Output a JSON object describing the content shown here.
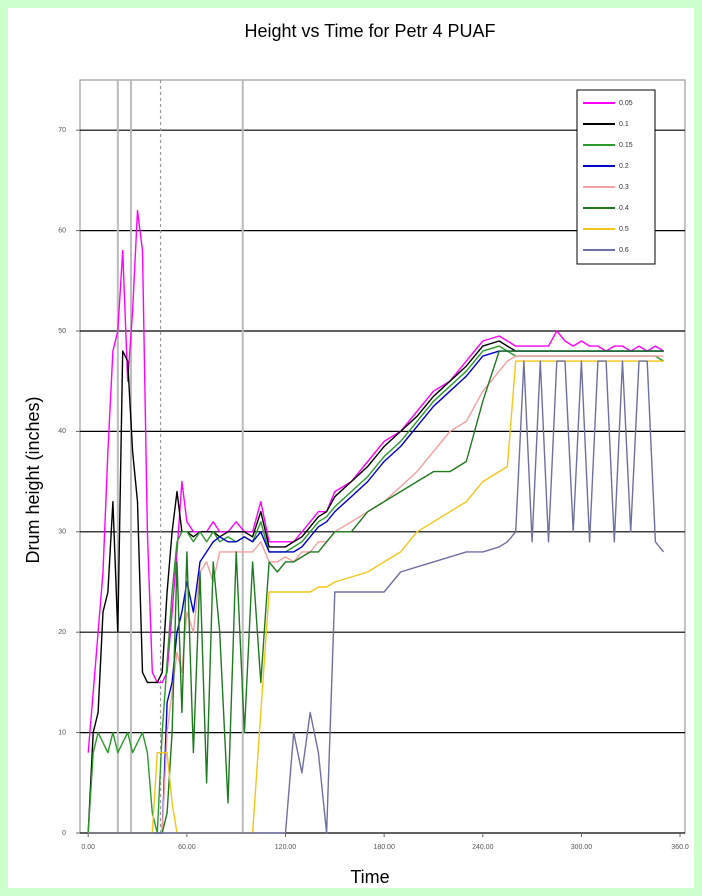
{
  "chart_data": {
    "type": "line",
    "title": "Height vs Time for Petr 4 PUAF",
    "xlabel": "Time",
    "ylabel": "Drum height (inches)",
    "xlim": [
      -5,
      363
    ],
    "ylim": [
      0,
      75
    ],
    "xticks": [
      {
        "value": 0,
        "label": "0.00"
      },
      {
        "value": 60,
        "label": "60.00"
      },
      {
        "value": 120,
        "label": "120.00"
      },
      {
        "value": 180,
        "label": "180.00"
      },
      {
        "value": 240,
        "label": "240.00"
      },
      {
        "value": 300,
        "label": "300.00"
      },
      {
        "value": 360,
        "label": "360.0"
      }
    ],
    "yticks": [
      0,
      10,
      20,
      30,
      40,
      50,
      60,
      70
    ],
    "grid": true,
    "legend": "upper right",
    "vlines": [
      18,
      26,
      44,
      94
    ],
    "vline_styles": [
      "solid",
      "solid",
      "dashed",
      "solid"
    ],
    "x": [
      0,
      3,
      6,
      9,
      12,
      15,
      18,
      21,
      24,
      27,
      30,
      33,
      36,
      39,
      42,
      45,
      48,
      51,
      54,
      57,
      60,
      64,
      68,
      72,
      76,
      80,
      85,
      90,
      95,
      100,
      105,
      110,
      115,
      120,
      125,
      130,
      135,
      140,
      145,
      150,
      160,
      170,
      180,
      190,
      200,
      210,
      220,
      230,
      240,
      250,
      255,
      260,
      265,
      270,
      275,
      280,
      285,
      290,
      295,
      300,
      305,
      310,
      315,
      320,
      325,
      330,
      335,
      340,
      345,
      350
    ],
    "series": [
      {
        "name": "0.05",
        "color": "#ff00ff",
        "values": [
          8,
          14,
          20,
          26,
          38,
          48,
          50,
          58,
          45,
          52,
          62,
          58,
          30,
          16,
          15,
          15,
          16,
          22,
          28,
          35,
          31,
          30,
          30,
          30,
          31,
          30,
          30,
          31,
          30,
          30,
          33,
          29,
          29,
          29,
          29,
          30,
          31,
          32,
          32,
          34,
          35,
          37,
          39,
          40,
          42,
          44,
          45,
          47,
          49,
          49.5,
          49,
          48.5,
          48.5,
          48.5,
          48.5,
          48.5,
          50,
          49,
          48.5,
          49,
          48.5,
          48.5,
          48,
          48.5,
          48.5,
          48,
          48.5,
          48,
          48.5,
          48
        ]
      },
      {
        "name": "0.1",
        "color": "#000000",
        "values": [
          0,
          10,
          12,
          22,
          24,
          33,
          20,
          48,
          47,
          38,
          33,
          16,
          15,
          15,
          15,
          16,
          24,
          30,
          34,
          30,
          30,
          29.5,
          30,
          30,
          30,
          29.5,
          30,
          30,
          30,
          29.5,
          32,
          28.5,
          28.5,
          28.5,
          29,
          29.5,
          30.5,
          31.5,
          32,
          33.5,
          35,
          36.5,
          38.5,
          40,
          41.5,
          43.5,
          45,
          46.5,
          48.5,
          49,
          48.5,
          48,
          48,
          48,
          48,
          48,
          48,
          48,
          48,
          48,
          48,
          48,
          48,
          48,
          48,
          48,
          48,
          48,
          48,
          48
        ]
      },
      {
        "name": "0.15",
        "color": "#2a9a2a",
        "values": [
          0,
          8,
          10,
          9,
          8,
          10,
          8,
          9,
          10,
          8,
          9,
          10,
          8,
          2,
          0,
          10,
          17,
          24,
          29,
          30,
          30,
          29,
          30,
          29,
          30,
          29,
          29.5,
          29,
          29.5,
          29,
          31,
          28,
          28,
          28,
          28.5,
          29,
          30,
          31,
          31.5,
          32.5,
          34,
          35.5,
          37.5,
          39,
          41,
          43,
          44.5,
          46,
          48,
          48.5,
          48,
          47.5,
          47.5,
          47.5,
          47.5,
          47.5,
          47.5,
          47.5,
          47.5,
          47.5,
          47.5,
          47.5,
          47.5,
          47.5,
          47.5,
          47.5,
          47.5,
          47.5,
          47.5,
          47
        ]
      },
      {
        "name": "0.2",
        "color": "#0000cc",
        "values": [
          0,
          0,
          0,
          0,
          0,
          0,
          0,
          0,
          0,
          0,
          0,
          0,
          0,
          0,
          0,
          0,
          13,
          15,
          20,
          22,
          25,
          22,
          27,
          28,
          29,
          29.5,
          29,
          29,
          29.5,
          29,
          30,
          28,
          28,
          28,
          28,
          28.5,
          29.5,
          30.5,
          31,
          32,
          33.5,
          35,
          37,
          38.5,
          40.5,
          42.5,
          44,
          45.5,
          47.5,
          48,
          48,
          48,
          48,
          48,
          48,
          48,
          48,
          48,
          48,
          48,
          48,
          48,
          48,
          48,
          48,
          48,
          48,
          48,
          48,
          48
        ]
      },
      {
        "name": "0.3",
        "color": "#f4a0a0",
        "values": [
          0,
          0,
          0,
          0,
          0,
          0,
          0,
          0,
          0,
          0,
          0,
          0,
          0,
          0,
          0,
          0,
          10,
          14,
          18,
          16,
          22,
          20,
          26,
          27,
          25,
          28,
          28,
          28,
          28,
          28,
          29,
          27,
          27,
          27.5,
          27,
          28,
          28,
          29,
          29,
          30,
          31,
          32,
          33,
          34.5,
          36,
          38,
          40,
          41,
          44,
          46,
          47,
          47.5,
          47.5,
          47.5,
          47.5,
          47.5,
          47.5,
          47.5,
          47.5,
          47.5,
          47.5,
          47.5,
          47.5,
          47.5,
          47.5,
          47.5,
          47.5,
          47.5,
          47.5,
          47.5
        ]
      },
      {
        "name": "0.4",
        "color": "#1e7a1e",
        "values": [
          0,
          0,
          0,
          0,
          0,
          0,
          0,
          0,
          0,
          0,
          0,
          0,
          0,
          0,
          0,
          0,
          2,
          10,
          27,
          12,
          28,
          8,
          26,
          5,
          27,
          20,
          3,
          28,
          10,
          27,
          15,
          27,
          26,
          27,
          27,
          27.5,
          28,
          28,
          29,
          30,
          30,
          32,
          33,
          34,
          35,
          36,
          36,
          37,
          43,
          48,
          48,
          48,
          48,
          48,
          48,
          48,
          48,
          48,
          48,
          48,
          48,
          48,
          48,
          48,
          48,
          48,
          48,
          48,
          48,
          48
        ]
      },
      {
        "name": "0.5",
        "color": "#f5c518",
        "values": [
          0,
          0,
          0,
          0,
          0,
          0,
          0,
          0,
          0,
          0,
          0,
          0,
          0,
          0,
          8,
          8,
          8,
          3,
          0,
          0,
          0,
          0,
          0,
          0,
          0,
          0,
          0,
          0,
          0,
          0,
          12,
          24,
          24,
          24,
          24,
          24,
          24,
          24.5,
          24.5,
          25,
          25.5,
          26,
          27,
          28,
          30,
          31,
          32,
          33,
          35,
          36,
          36.5,
          47,
          47,
          47,
          47,
          47,
          47,
          47,
          47,
          47,
          47,
          47,
          47,
          47,
          47,
          47,
          47,
          47,
          47,
          47
        ]
      },
      {
        "name": "0.6",
        "color": "#7070a0",
        "values": [
          0,
          0,
          0,
          0,
          0,
          0,
          0,
          0,
          0,
          0,
          0,
          0,
          0,
          0,
          0,
          0,
          0,
          0,
          0,
          0,
          0,
          0,
          0,
          0,
          0,
          0,
          0,
          0,
          0,
          0,
          0,
          0,
          0,
          0,
          10,
          6,
          12,
          8,
          0,
          24,
          24,
          24,
          24,
          26,
          26.5,
          27,
          27.5,
          28,
          28,
          28.5,
          29,
          30,
          47,
          29,
          47,
          29,
          47,
          47,
          30,
          47,
          29,
          47,
          47,
          29,
          47,
          30,
          47,
          47,
          29,
          28
        ]
      }
    ]
  }
}
